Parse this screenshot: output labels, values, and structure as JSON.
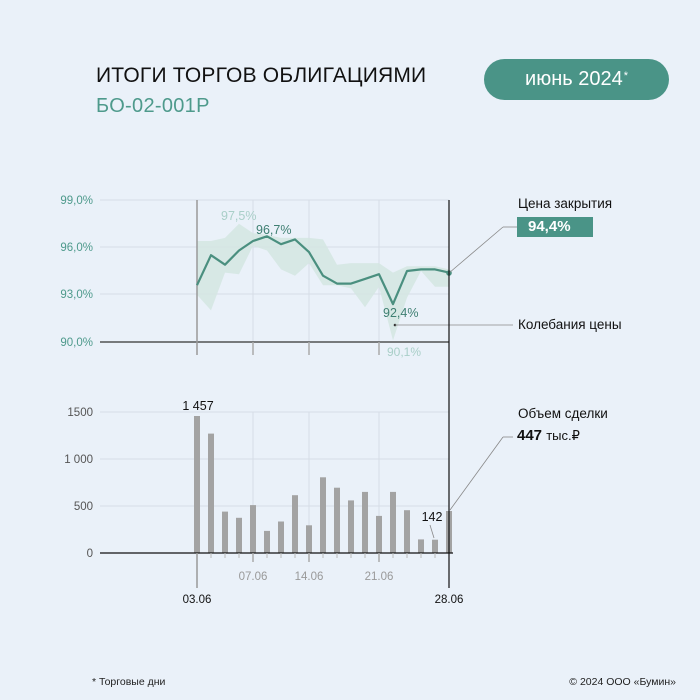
{
  "header": {
    "title": "ИТОГИ ТОРГОВ ОБЛИГАЦИЯМИ",
    "subtitle": "БО-02-001Р",
    "period_badge": "июнь 2024",
    "period_badge_mark": "*"
  },
  "colors": {
    "accent": "#4a9487",
    "band": "#d3e6e2",
    "bar": "#a3a3a3",
    "background": "#eaf1f9"
  },
  "legend": {
    "close_label": "Цена закрытия",
    "close_value": "94,4%",
    "range_label": "Колебания цены",
    "volume_label": "Объем сделки",
    "volume_value": "447",
    "volume_unit": "тыс.₽"
  },
  "footer": {
    "footnote": "* Торговые дни",
    "copyright": "© 2024 ООО «Бумин»"
  },
  "chart_data": [
    {
      "type": "line",
      "title": "Цена закрытия и колебания цены",
      "ylabel": "",
      "ylim": [
        90,
        99
      ],
      "yticks": [
        "99,0%",
        "96,0%",
        "93,0%",
        "90,0%"
      ],
      "x": [
        "03.06",
        "04.06",
        "05.06",
        "06.06",
        "07.06",
        "10.06",
        "11.06",
        "13.06",
        "14.06",
        "17.06",
        "18.06",
        "19.06",
        "20.06",
        "21.06",
        "24.06",
        "25.06",
        "26.06",
        "27.06",
        "28.06"
      ],
      "series": [
        {
          "name": "Цена закрытия",
          "values": [
            93.6,
            95.5,
            94.9,
            95.8,
            96.4,
            96.7,
            96.2,
            96.5,
            95.7,
            94.2,
            93.7,
            93.7,
            94.0,
            94.3,
            92.4,
            94.5,
            94.6,
            94.6,
            94.4
          ]
        },
        {
          "name": "Колебания цены (max)",
          "values": [
            96.4,
            96.4,
            96.6,
            97.5,
            96.9,
            96.8,
            96.6,
            96.6,
            96.6,
            96.5,
            94.9,
            95.0,
            95.0,
            95.0,
            94.4,
            94.8,
            94.8,
            94.8,
            94.6
          ]
        },
        {
          "name": "Колебания цены (min)",
          "values": [
            93.0,
            92.0,
            94.4,
            94.3,
            96.1,
            95.8,
            94.6,
            94.2,
            95.0,
            93.6,
            93.6,
            93.4,
            92.2,
            93.5,
            90.1,
            92.8,
            94.5,
            93.5,
            93.5
          ]
        }
      ],
      "annotations": [
        "97,5%",
        "96,7%",
        "92,4%",
        "90,1%",
        "94,4%"
      ],
      "xticks": [
        "03.06",
        "07.06",
        "14.06",
        "21.06",
        "28.06"
      ],
      "grid": true
    },
    {
      "type": "bar",
      "title": "Объем сделки, тыс. ₽",
      "ylim": [
        0,
        1500
      ],
      "yticks": [
        "1500",
        "1 000",
        "500",
        "0"
      ],
      "categories": [
        "03.06",
        "04.06",
        "05.06",
        "06.06",
        "07.06",
        "10.06",
        "11.06",
        "13.06",
        "14.06",
        "17.06",
        "18.06",
        "19.06",
        "20.06",
        "21.06",
        "24.06",
        "25.06",
        "26.06",
        "27.06",
        "28.06"
      ],
      "values": [
        1457,
        1270,
        440,
        375,
        510,
        235,
        335,
        615,
        295,
        805,
        695,
        560,
        650,
        395,
        650,
        455,
        145,
        142,
        447
      ],
      "annotations": [
        "1 457",
        "142",
        "447 тыс.₽"
      ],
      "xticks": [
        "03.06",
        "07.06",
        "14.06",
        "21.06",
        "28.06"
      ],
      "grid": true
    }
  ]
}
